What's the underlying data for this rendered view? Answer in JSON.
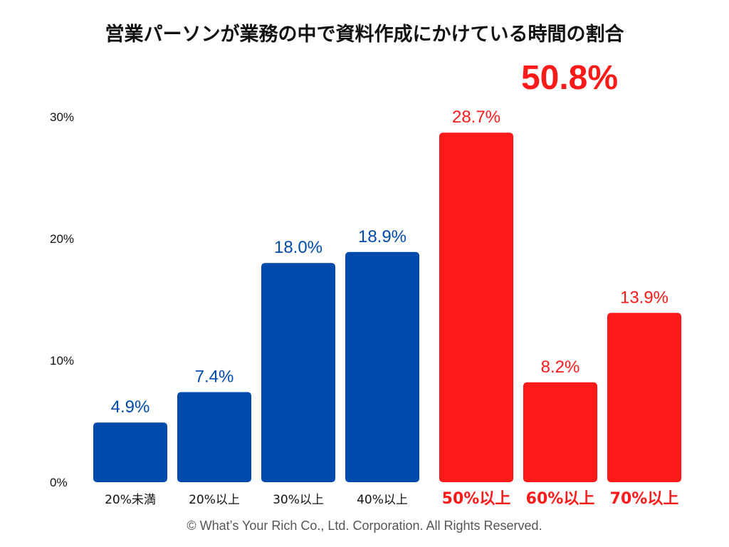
{
  "chart_data": {
    "type": "bar",
    "title": "営業パーソンが業務の中で資料作成にかけている時間の割合",
    "categories": [
      "20%未満",
      "20%以上",
      "30%以上",
      "40%以上",
      "50%以上",
      "60%以上",
      "70%以上"
    ],
    "values": [
      4.9,
      7.4,
      18.0,
      18.9,
      28.7,
      8.2,
      13.9
    ],
    "value_labels": [
      "4.9%",
      "7.4%",
      "18.0%",
      "18.9%",
      "28.7%",
      "8.2%",
      "13.9%"
    ],
    "highlight_groups": [
      false,
      false,
      false,
      false,
      true,
      true,
      true
    ],
    "yticks": [
      0,
      10,
      20,
      30
    ],
    "ytick_labels": [
      "0%",
      "10%",
      "20%",
      "30%"
    ],
    "ylim": [
      0,
      30
    ],
    "xlabel": "",
    "ylabel": "",
    "grid": false,
    "colors": {
      "normal": "#004AAD",
      "highlight": "#FF1A1A",
      "axis_text": "#111111"
    },
    "highlight_total": "50.8%"
  },
  "footer": "© What’s Your Rich Co., Ltd. Corporation. All Rights Reserved."
}
